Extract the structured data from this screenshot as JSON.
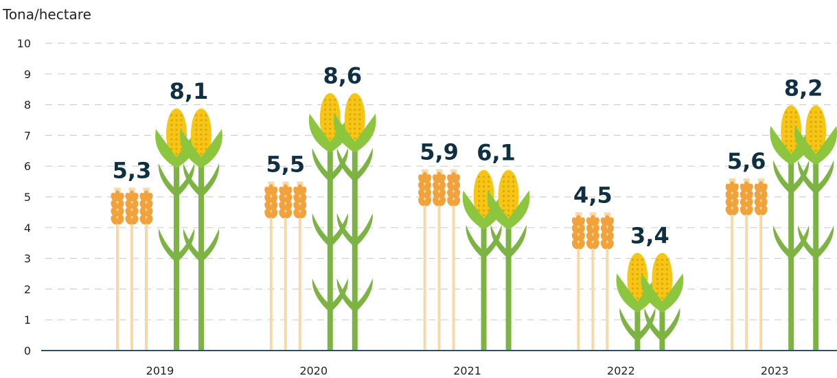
{
  "chart_data": {
    "type": "bar",
    "ylabel": "Tona/hectare",
    "ylim": [
      0,
      10
    ],
    "yticks": [
      "0",
      "1",
      "2",
      "3",
      "4",
      "5",
      "6",
      "7",
      "8",
      "9",
      "10"
    ],
    "grid": true,
    "categories": [
      "2019",
      "2020",
      "2021",
      "2022",
      "2023"
    ],
    "series": [
      {
        "values": [
          5.3,
          5.5,
          5.9,
          4.5,
          5.6
        ],
        "labels": [
          "5,3",
          "5,5",
          "5,9",
          "4,5",
          "5,6"
        ],
        "icon": "wheat-icon"
      },
      {
        "values": [
          8.1,
          8.6,
          6.1,
          3.4,
          8.2
        ],
        "labels": [
          "8,1",
          "8,6",
          "6,1",
          "3,4",
          "8,2"
        ],
        "icon": "corn-icon"
      }
    ],
    "colors": {
      "wheat_head": "#f2a23a",
      "wheat_stem": "#f6d9a6",
      "corn_cob": "#f5c518",
      "corn_leaf": "#8cc63f",
      "corn_stem": "#7cb342",
      "grid": "#cfcfcf",
      "axis": "#2f4f5f",
      "value_text": "#0f2f42"
    }
  }
}
